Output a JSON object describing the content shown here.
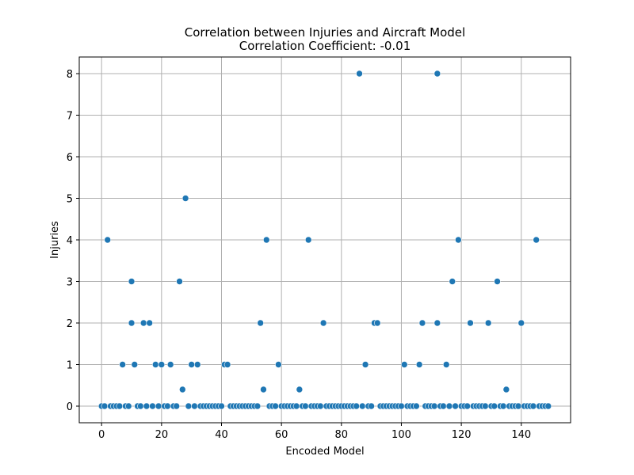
{
  "chart_data": {
    "type": "scatter",
    "title": "Correlation between Injuries and Aircraft Model",
    "subtitle": "Correlation Coefficient: -0.01",
    "xlabel": "Encoded Model",
    "ylabel": "Injuries",
    "xlim": [
      -7.45,
      156.45
    ],
    "ylim": [
      -0.4,
      8.4
    ],
    "xticks": [
      0,
      20,
      40,
      60,
      80,
      100,
      120,
      140
    ],
    "yticks": [
      0,
      1,
      2,
      3,
      4,
      5,
      6,
      7,
      8
    ],
    "grid": true,
    "marker_color": "#1f77b4",
    "points": [
      [
        0,
        0
      ],
      [
        1,
        0
      ],
      [
        2,
        4
      ],
      [
        3,
        0
      ],
      [
        4,
        0
      ],
      [
        5,
        0
      ],
      [
        6,
        0
      ],
      [
        7,
        1
      ],
      [
        8,
        0
      ],
      [
        9,
        0
      ],
      [
        10,
        3
      ],
      [
        10,
        2
      ],
      [
        11,
        1
      ],
      [
        12,
        0
      ],
      [
        13,
        0
      ],
      [
        14,
        2
      ],
      [
        15,
        0
      ],
      [
        16,
        2
      ],
      [
        17,
        0
      ],
      [
        18,
        1
      ],
      [
        19,
        0
      ],
      [
        20,
        1
      ],
      [
        21,
        0
      ],
      [
        22,
        0
      ],
      [
        23,
        1
      ],
      [
        24,
        0
      ],
      [
        25,
        0
      ],
      [
        26,
        3
      ],
      [
        27,
        0.4
      ],
      [
        28,
        5
      ],
      [
        29,
        0
      ],
      [
        30,
        1
      ],
      [
        31,
        0
      ],
      [
        32,
        1
      ],
      [
        33,
        0
      ],
      [
        34,
        0
      ],
      [
        35,
        0
      ],
      [
        36,
        0
      ],
      [
        37,
        0
      ],
      [
        38,
        0
      ],
      [
        39,
        0
      ],
      [
        40,
        0
      ],
      [
        41,
        1
      ],
      [
        42,
        1
      ],
      [
        43,
        0
      ],
      [
        44,
        0
      ],
      [
        45,
        0
      ],
      [
        46,
        0
      ],
      [
        47,
        0
      ],
      [
        48,
        0
      ],
      [
        49,
        0
      ],
      [
        50,
        0
      ],
      [
        51,
        0
      ],
      [
        52,
        0
      ],
      [
        53,
        2
      ],
      [
        54,
        0.4
      ],
      [
        55,
        4
      ],
      [
        56,
        0
      ],
      [
        57,
        0
      ],
      [
        58,
        0
      ],
      [
        59,
        1
      ],
      [
        60,
        0
      ],
      [
        61,
        0
      ],
      [
        62,
        0
      ],
      [
        63,
        0
      ],
      [
        64,
        0
      ],
      [
        65,
        0
      ],
      [
        66,
        0.4
      ],
      [
        67,
        0
      ],
      [
        68,
        0
      ],
      [
        69,
        4
      ],
      [
        70,
        0
      ],
      [
        71,
        0
      ],
      [
        72,
        0
      ],
      [
        73,
        0
      ],
      [
        74,
        2
      ],
      [
        75,
        0
      ],
      [
        76,
        0
      ],
      [
        77,
        0
      ],
      [
        78,
        0
      ],
      [
        79,
        0
      ],
      [
        80,
        0
      ],
      [
        81,
        0
      ],
      [
        82,
        0
      ],
      [
        83,
        0
      ],
      [
        84,
        0
      ],
      [
        85,
        0
      ],
      [
        86,
        8
      ],
      [
        87,
        0
      ],
      [
        88,
        1
      ],
      [
        89,
        0
      ],
      [
        90,
        0
      ],
      [
        91,
        2
      ],
      [
        92,
        2
      ],
      [
        93,
        0
      ],
      [
        94,
        0
      ],
      [
        95,
        0
      ],
      [
        96,
        0
      ],
      [
        97,
        0
      ],
      [
        98,
        0
      ],
      [
        99,
        0
      ],
      [
        100,
        0
      ],
      [
        101,
        1
      ],
      [
        102,
        0
      ],
      [
        103,
        0
      ],
      [
        104,
        0
      ],
      [
        105,
        0
      ],
      [
        106,
        1
      ],
      [
        107,
        2
      ],
      [
        108,
        0
      ],
      [
        109,
        0
      ],
      [
        110,
        0
      ],
      [
        111,
        0
      ],
      [
        112,
        8
      ],
      [
        112,
        2
      ],
      [
        113,
        0
      ],
      [
        114,
        0
      ],
      [
        115,
        1
      ],
      [
        116,
        0
      ],
      [
        117,
        3
      ],
      [
        118,
        0
      ],
      [
        119,
        4
      ],
      [
        120,
        0
      ],
      [
        121,
        0
      ],
      [
        122,
        0
      ],
      [
        123,
        2
      ],
      [
        124,
        0
      ],
      [
        125,
        0
      ],
      [
        126,
        0
      ],
      [
        127,
        0
      ],
      [
        128,
        0
      ],
      [
        129,
        2
      ],
      [
        130,
        0
      ],
      [
        131,
        0
      ],
      [
        132,
        3
      ],
      [
        133,
        0
      ],
      [
        134,
        0
      ],
      [
        135,
        0.4
      ],
      [
        136,
        0
      ],
      [
        137,
        0
      ],
      [
        138,
        0
      ],
      [
        139,
        0
      ],
      [
        140,
        2
      ],
      [
        141,
        0
      ],
      [
        142,
        0
      ],
      [
        143,
        0
      ],
      [
        144,
        0
      ],
      [
        145,
        4
      ],
      [
        146,
        0
      ],
      [
        147,
        0
      ],
      [
        148,
        0
      ],
      [
        149,
        0
      ]
    ]
  }
}
